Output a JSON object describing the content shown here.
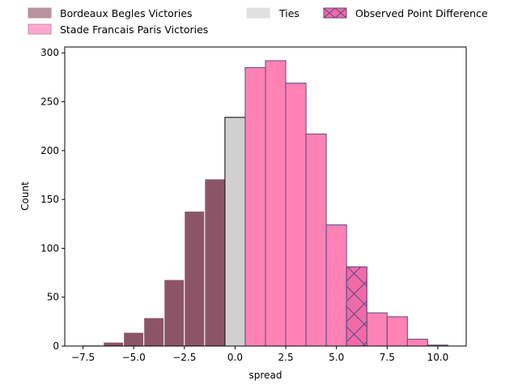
{
  "chart_data": {
    "type": "bar",
    "xlabel": "spread",
    "ylabel": "Count",
    "xlim": [
      -8.4,
      11.4
    ],
    "ylim": [
      0,
      306
    ],
    "xticks": [
      -7.5,
      -5.0,
      -2.5,
      0.0,
      2.5,
      5.0,
      7.5,
      10.0
    ],
    "xtick_labels": [
      "−7.5",
      "−5.0",
      "−2.5",
      "0.0",
      "2.5",
      "5.0",
      "7.5",
      "10.0"
    ],
    "yticks": [
      0,
      50,
      100,
      150,
      200,
      250,
      300
    ],
    "ytick_labels": [
      "0",
      "50",
      "100",
      "150",
      "200",
      "250",
      "300"
    ],
    "bin_width": 1,
    "legend": {
      "placement": "top",
      "entries": [
        {
          "label": "Bordeaux Begles Victories",
          "style": "bordeaux"
        },
        {
          "label": "Stade Francais Paris Victories",
          "style": "stade"
        },
        {
          "label": "Ties",
          "style": "ties"
        },
        {
          "label": "Observed Point Difference",
          "style": "observed"
        }
      ]
    },
    "series": [
      {
        "name": "Bordeaux Begles Victories",
        "color": "#8c5567",
        "edge": "#ffffff",
        "x": [
          -7,
          -6,
          -5,
          -4,
          -3,
          -2,
          -1
        ],
        "values": [
          1,
          4,
          14,
          29,
          68,
          138,
          171
        ]
      },
      {
        "name": "Ties",
        "color": "#d0d0d0",
        "edge": "#000000",
        "x": [
          0
        ],
        "values": [
          234
        ]
      },
      {
        "name": "Stade Francais Paris Victories",
        "color": "#ff82b4",
        "edge": "#5b4a80",
        "x": [
          1,
          2,
          3,
          4,
          5,
          6,
          7,
          8,
          9,
          10
        ],
        "values": [
          285,
          292,
          269,
          217,
          124,
          81,
          34,
          30,
          7,
          1
        ]
      }
    ],
    "observed_point_difference": {
      "x": 6,
      "value": 81
    }
  }
}
